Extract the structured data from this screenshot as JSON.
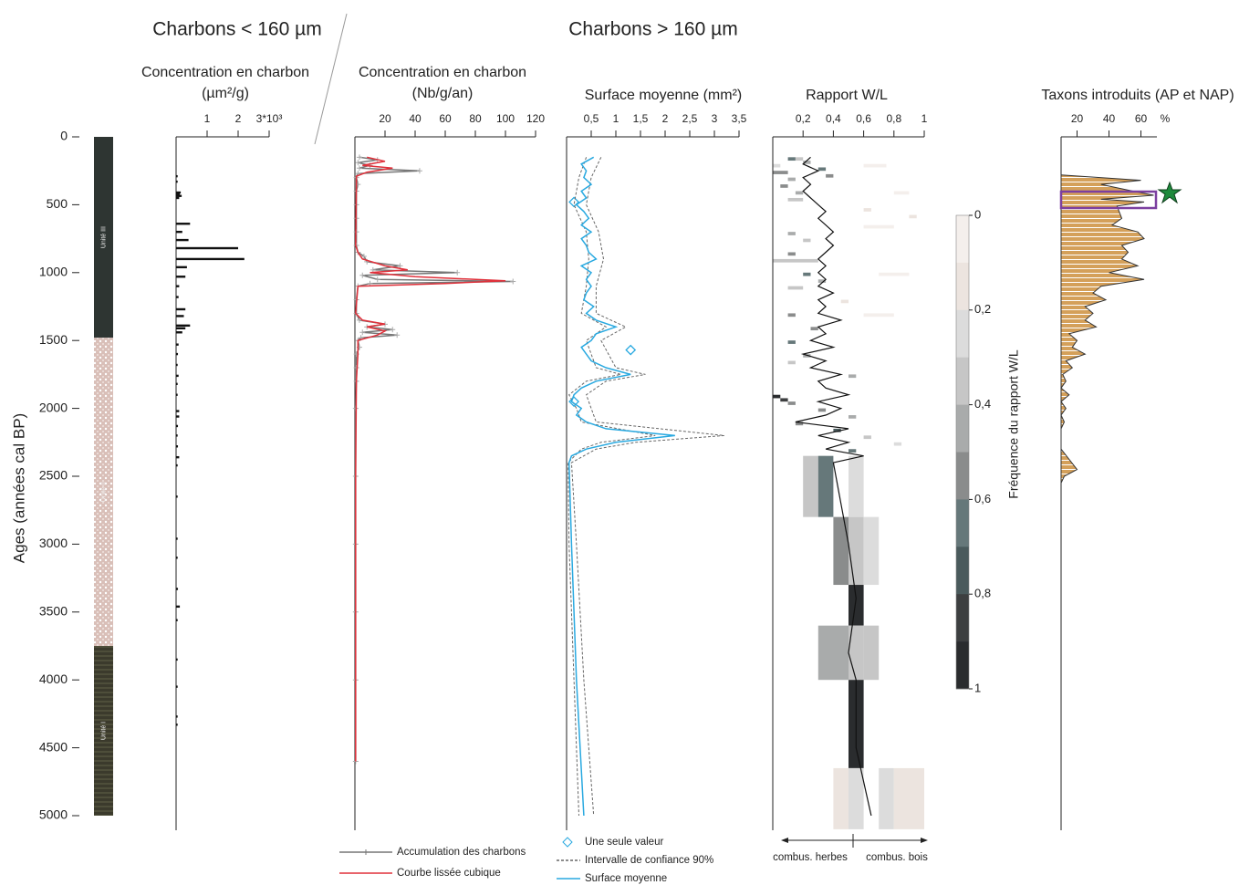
{
  "headers": [
    "Charbons < 160 µm",
    "Charbons > 160 µm"
  ],
  "chart_data": [
    {
      "type": "strata",
      "ylabel": "Ages (années cal BP)",
      "ylim": [
        0,
        5000
      ],
      "yticks": [
        0,
        500,
        1000,
        1500,
        2000,
        2500,
        3000,
        3500,
        4000,
        4500,
        5000
      ],
      "layers": [
        {
          "name": "Unité III",
          "top": 0,
          "bottom": 1480,
          "color": "#2e3532",
          "pattern": "none"
        },
        {
          "name": "Unité II",
          "top": 1480,
          "bottom": 3750,
          "color": "#d9bfb8",
          "pattern": "dots"
        },
        {
          "name": "Unité I",
          "top": 3750,
          "bottom": 5000,
          "color": "#3b3a2c",
          "pattern": "lines"
        }
      ]
    },
    {
      "type": "hbar",
      "title": "Concentration en charbon",
      "unit": "(µm²/g)",
      "xlim": [
        0,
        3
      ],
      "xticks": [
        1,
        2,
        {
          "value": 3,
          "label": "3*10³"
        }
      ],
      "color": "#111111",
      "ages": [
        290,
        330,
        410,
        420,
        435,
        450,
        640,
        700,
        760,
        820,
        900,
        960,
        1030,
        1100,
        1180,
        1270,
        1320,
        1390,
        1410,
        1440,
        1530,
        1600,
        1680,
        1760,
        1820,
        1900,
        2020,
        2060,
        2130,
        2200,
        2280,
        2360,
        2420,
        2650,
        2960,
        3100,
        3330,
        3460,
        3560,
        3850,
        4050,
        4270,
        4330
      ],
      "values": [
        0.05,
        0.05,
        0.15,
        0.12,
        0.18,
        0.1,
        0.45,
        0.2,
        0.4,
        2.0,
        2.2,
        0.35,
        0.3,
        0.1,
        0.08,
        0.3,
        0.25,
        0.45,
        0.3,
        0.2,
        0.08,
        0.06,
        0.05,
        0.08,
        0.05,
        0.05,
        0.1,
        0.1,
        0.06,
        0.05,
        0.06,
        0.1,
        0.05,
        0.05,
        0.05,
        0.05,
        0.06,
        0.12,
        0.05,
        0.05,
        0.05,
        0.05,
        0.05
      ]
    },
    {
      "type": "line",
      "title": "Concentration en charbon",
      "unit": "(Nb/g/an)",
      "xlim": [
        0,
        120
      ],
      "xticks": [
        20,
        40,
        60,
        80,
        100,
        120
      ],
      "series": [
        {
          "name": "Accumulation des charbons",
          "color": "#777777",
          "marker": "plus",
          "ages": [
            150,
            170,
            190,
            210,
            230,
            250,
            270,
            300,
            350,
            400,
            500,
            600,
            700,
            800,
            850,
            880,
            920,
            950,
            980,
            1000,
            1020,
            1050,
            1065,
            1080,
            1100,
            1200,
            1300,
            1350,
            1380,
            1400,
            1420,
            1440,
            1460,
            1480,
            1500,
            1550,
            1600,
            1700,
            1800,
            2000,
            2500,
            3000,
            3500,
            4000,
            4600
          ],
          "values": [
            3,
            15,
            2,
            10,
            3,
            43,
            2,
            1,
            2,
            1,
            1,
            1,
            1,
            1,
            2,
            6,
            8,
            30,
            12,
            68,
            5,
            15,
            105,
            10,
            2,
            1,
            1,
            3,
            20,
            8,
            25,
            5,
            28,
            4,
            2,
            3,
            1,
            1,
            1,
            0.5,
            0.5,
            0.5,
            0.5,
            0.5,
            0.5
          ]
        },
        {
          "name": "Courbe lissée cubique",
          "color": "#e0303a",
          "ages": [
            150,
            180,
            210,
            230,
            260,
            290,
            350,
            800,
            850,
            900,
            950,
            980,
            1000,
            1030,
            1060,
            1080,
            1100,
            1300,
            1350,
            1380,
            1400,
            1430,
            1460,
            1500,
            1600,
            1800,
            2500,
            3500,
            4600
          ],
          "values": [
            8,
            20,
            5,
            25,
            8,
            1,
            1,
            0.5,
            2,
            5,
            20,
            35,
            10,
            40,
            100,
            60,
            2,
            0.5,
            5,
            20,
            8,
            20,
            15,
            2,
            2,
            1,
            0.5,
            0.5,
            0.5
          ]
        }
      ]
    },
    {
      "type": "line",
      "title": "Surface moyenne (mm²)",
      "xlim": [
        0,
        3.5
      ],
      "xticks": [
        {
          "value": 0.5,
          "label": "0,5"
        },
        1,
        {
          "value": 1.5,
          "label": "1,5"
        },
        2,
        {
          "value": 2.5,
          "label": "2,5"
        },
        3,
        {
          "value": 3.5,
          "label": "3,5"
        }
      ],
      "series": [
        {
          "name": "Une seule valeur",
          "color": "#29a9e0",
          "marker": "diamond",
          "ages": [
            480,
            1570,
            1950
          ],
          "values": [
            0.15,
            1.3,
            0.15
          ]
        },
        {
          "name": "Intervalle de confiance 90%",
          "color": "#666666",
          "dashed": true,
          "ages": [
            150,
            300,
            500,
            700,
            900,
            1100,
            1300,
            1400,
            1500,
            1700,
            1750,
            1800,
            1900,
            2000,
            2100,
            2200,
            2250,
            2300,
            2400,
            3000,
            4000,
            5000
          ],
          "low": [
            0.4,
            0.25,
            0.15,
            0.4,
            0.45,
            0.4,
            0.3,
            0.8,
            0.4,
            0.6,
            1.1,
            0.4,
            0.05,
            0.2,
            0.3,
            1.8,
            0.7,
            0.3,
            0.03,
            0.05,
            0.15,
            0.25
          ],
          "high": [
            0.7,
            0.5,
            0.4,
            0.65,
            0.75,
            0.6,
            0.6,
            1.2,
            0.7,
            1.0,
            1.6,
            0.8,
            0.4,
            0.5,
            0.6,
            3.2,
            1.4,
            0.6,
            0.1,
            0.2,
            0.35,
            0.55
          ]
        },
        {
          "name": "Surface moyenne",
          "color": "#29a9e0",
          "ages": [
            150,
            200,
            250,
            300,
            350,
            400,
            450,
            500,
            550,
            600,
            650,
            700,
            750,
            800,
            850,
            900,
            950,
            1000,
            1050,
            1100,
            1150,
            1200,
            1250,
            1300,
            1350,
            1400,
            1450,
            1500,
            1550,
            1600,
            1650,
            1700,
            1750,
            1800,
            1850,
            1900,
            1950,
            2000,
            2050,
            2100,
            2150,
            2200,
            2250,
            2300,
            2350,
            2400,
            3000,
            4000,
            5000
          ],
          "values": [
            0.55,
            0.3,
            0.4,
            0.35,
            0.5,
            0.3,
            0.4,
            0.2,
            0.35,
            0.45,
            0.3,
            0.5,
            0.3,
            0.4,
            0.45,
            0.6,
            0.3,
            0.5,
            0.4,
            0.5,
            0.4,
            0.35,
            0.55,
            0.4,
            0.6,
            1.0,
            0.6,
            0.5,
            0.3,
            0.4,
            0.5,
            0.8,
            1.3,
            0.6,
            0.3,
            0.15,
            0.1,
            0.3,
            0.2,
            0.4,
            0.8,
            2.2,
            1.0,
            0.4,
            0.1,
            0.05,
            0.1,
            0.2,
            0.35
          ]
        }
      ]
    },
    {
      "type": "heatmap",
      "title": "Rapport W/L",
      "xlim": [
        0,
        1
      ],
      "xticks": [
        {
          "value": 0.2,
          "label": "0,2"
        },
        {
          "value": 0.4,
          "label": "0,4"
        },
        {
          "value": 0.6,
          "label": "0,6"
        },
        {
          "value": 0.8,
          "label": "0,8"
        },
        1
      ],
      "cells": [
        [
          150,
          175,
          0.1,
          0.15,
          0.6
        ],
        [
          150,
          175,
          0.15,
          0.2,
          0.3
        ],
        [
          175,
          200,
          0.2,
          0.25,
          0.4
        ],
        [
          200,
          225,
          0.0,
          0.05,
          0.2
        ],
        [
          225,
          250,
          0.3,
          0.35,
          0.6
        ],
        [
          250,
          275,
          0.0,
          0.1,
          0.5
        ],
        [
          275,
          300,
          0.35,
          0.4,
          0.5
        ],
        [
          300,
          325,
          0.1,
          0.15,
          0.4
        ],
        [
          350,
          375,
          0.05,
          0.1,
          0.5
        ],
        [
          400,
          425,
          0.15,
          0.2,
          0.4
        ],
        [
          450,
          475,
          0.1,
          0.2,
          0.3
        ],
        [
          525,
          550,
          0.6,
          0.65,
          0.1
        ],
        [
          575,
          600,
          0.9,
          0.95,
          0.1
        ],
        [
          700,
          725,
          0.1,
          0.15,
          0.4
        ],
        [
          750,
          775,
          0.2,
          0.25,
          0.3
        ],
        [
          850,
          875,
          0.1,
          0.15,
          0.5
        ],
        [
          900,
          925,
          0.0,
          0.3,
          0.3
        ],
        [
          1000,
          1025,
          0.2,
          0.25,
          0.6
        ],
        [
          1050,
          1075,
          0.3,
          0.35,
          0.4
        ],
        [
          1100,
          1125,
          0.1,
          0.2,
          0.3
        ],
        [
          1200,
          1225,
          0.45,
          0.5,
          0.1
        ],
        [
          1300,
          1325,
          0.1,
          0.15,
          0.5
        ],
        [
          1400,
          1425,
          0.25,
          0.3,
          0.5
        ],
        [
          1500,
          1525,
          0.1,
          0.15,
          0.6
        ],
        [
          1600,
          1625,
          0.2,
          0.25,
          0.4
        ],
        [
          1650,
          1675,
          0.1,
          0.15,
          0.3
        ],
        [
          1750,
          1775,
          0.5,
          0.55,
          0.4
        ],
        [
          1900,
          1925,
          0.0,
          0.05,
          0.9
        ],
        [
          1925,
          1950,
          0.05,
          0.1,
          0.8
        ],
        [
          1950,
          1975,
          0.1,
          0.15,
          0.5
        ],
        [
          2000,
          2025,
          0.3,
          0.35,
          0.5
        ],
        [
          2050,
          2075,
          0.5,
          0.55,
          0.4
        ],
        [
          2100,
          2125,
          0.15,
          0.2,
          0.5
        ],
        [
          2150,
          2175,
          0.4,
          0.45,
          0.7
        ],
        [
          2200,
          2225,
          0.6,
          0.65,
          0.3
        ],
        [
          2250,
          2275,
          0.8,
          0.85,
          0.2
        ],
        [
          2300,
          2325,
          0.5,
          0.55,
          0.6
        ],
        [
          2350,
          2375,
          0.3,
          0.35,
          0.2
        ],
        [
          200,
          225,
          0.6,
          0.75,
          0.05
        ],
        [
          400,
          425,
          0.8,
          0.9,
          0.05
        ],
        [
          650,
          675,
          0.6,
          0.8,
          0.05
        ],
        [
          1000,
          1025,
          0.7,
          0.9,
          0.05
        ],
        [
          1300,
          1325,
          0.6,
          0.8,
          0.05
        ],
        [
          2350,
          2800,
          0.2,
          0.3,
          0.3
        ],
        [
          2350,
          2800,
          0.3,
          0.4,
          0.6
        ],
        [
          2350,
          2800,
          0.5,
          0.6,
          0.2
        ],
        [
          2800,
          3300,
          0.4,
          0.5,
          0.5
        ],
        [
          2800,
          3300,
          0.5,
          0.6,
          0.3
        ],
        [
          2800,
          3300,
          0.6,
          0.7,
          0.2
        ],
        [
          3300,
          3600,
          0.5,
          0.6,
          1.0
        ],
        [
          3600,
          4000,
          0.3,
          0.5,
          0.4
        ],
        [
          3600,
          4000,
          0.5,
          0.6,
          0.3
        ],
        [
          3600,
          4000,
          0.6,
          0.7,
          0.3
        ],
        [
          4000,
          4650,
          0.5,
          0.6,
          1.0
        ],
        [
          4650,
          5100,
          0.4,
          0.5,
          0.1
        ],
        [
          4650,
          5100,
          0.5,
          0.6,
          0.2
        ],
        [
          4650,
          5100,
          0.7,
          0.8,
          0.2
        ],
        [
          4650,
          5100,
          0.8,
          1.0,
          0.1
        ]
      ],
      "line": {
        "color": "#111111",
        "ages": [
          150,
          200,
          250,
          300,
          350,
          400,
          450,
          500,
          550,
          600,
          650,
          700,
          750,
          800,
          850,
          900,
          950,
          1000,
          1050,
          1100,
          1150,
          1200,
          1250,
          1300,
          1350,
          1400,
          1450,
          1500,
          1550,
          1600,
          1650,
          1700,
          1750,
          1800,
          1850,
          1900,
          1950,
          2000,
          2050,
          2100,
          2150,
          2200,
          2250,
          2300,
          2350,
          2400,
          2700,
          3000,
          3400,
          3800,
          4000,
          4500,
          5000
        ],
        "values": [
          0.25,
          0.2,
          0.3,
          0.2,
          0.25,
          0.2,
          0.25,
          0.3,
          0.35,
          0.3,
          0.35,
          0.4,
          0.35,
          0.4,
          0.35,
          0.3,
          0.35,
          0.3,
          0.35,
          0.3,
          0.4,
          0.3,
          0.35,
          0.3,
          0.45,
          0.3,
          0.35,
          0.25,
          0.4,
          0.2,
          0.35,
          0.25,
          0.45,
          0.3,
          0.35,
          0.5,
          0.3,
          0.45,
          0.35,
          0.15,
          0.5,
          0.3,
          0.5,
          0.35,
          0.6,
          0.4,
          0.45,
          0.5,
          0.55,
          0.5,
          0.55,
          0.55,
          0.65
        ]
      },
      "colorbar": {
        "label": "Fréquence du rapport W/L",
        "lim": [
          0,
          1
        ],
        "ticks": [
          0,
          {
            "value": 0.2,
            "label": "0,2"
          },
          {
            "value": 0.4,
            "label": "0,4"
          },
          {
            "value": 0.6,
            "label": "0,6"
          },
          {
            "value": 0.8,
            "label": "0,8"
          },
          1
        ],
        "colors": [
          "#f4efec",
          "#ece4df",
          "#dcdcdc",
          "#c6c6c6",
          "#a9abab",
          "#8a8c8c",
          "#66787a",
          "#4a5a5c",
          "#3d3f40",
          "#2a2c2e"
        ]
      },
      "annotations": [
        "combus. herbes",
        "combus. bois"
      ]
    },
    {
      "type": "area",
      "title": "Taxons introduits (AP et NAP)",
      "unit": "%",
      "xlim": [
        10,
        70
      ],
      "xticks": [
        20,
        40,
        60
      ],
      "color": "#d4a05a",
      "ages": [
        280,
        320,
        350,
        400,
        430,
        460,
        480,
        510,
        600,
        650,
        700,
        750,
        800,
        850,
        900,
        950,
        1000,
        1050,
        1100,
        1150,
        1200,
        1250,
        1300,
        1350,
        1400,
        1450,
        1500,
        1550,
        1600,
        1650,
        1700,
        1750,
        1800,
        1850,
        1900,
        1950,
        2000,
        2050,
        2100,
        2150,
        2300,
        2450,
        2500,
        2550
      ],
      "values": [
        10,
        60,
        35,
        55,
        68,
        35,
        62,
        45,
        48,
        42,
        58,
        62,
        48,
        52,
        48,
        58,
        40,
        62,
        35,
        30,
        38,
        25,
        30,
        25,
        32,
        15,
        20,
        17,
        25,
        13,
        17,
        11,
        13,
        10,
        15,
        10,
        13,
        10,
        12,
        10,
        10,
        20,
        12,
        10
      ]
    }
  ]
}
